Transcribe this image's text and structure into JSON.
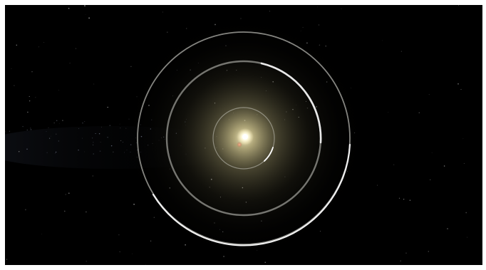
{
  "scene": {
    "subject": "planetary-orbit-visualization",
    "background_color": "#000000",
    "frame_color": "#ffffff",
    "star_glow_color": "#d8d0a0",
    "star_core_color": "#fffbe8",
    "companion_star_color": "#e89070",
    "orbit_color": "#e8e8e8",
    "orbit_highlight_color": "#ffffff"
  },
  "orbits": [
    {
      "name": "inner-orbit",
      "state": "faint"
    },
    {
      "name": "middle-orbit",
      "state": "partially-highlighted"
    },
    {
      "name": "outer-orbit",
      "state": "partially-highlighted"
    }
  ]
}
